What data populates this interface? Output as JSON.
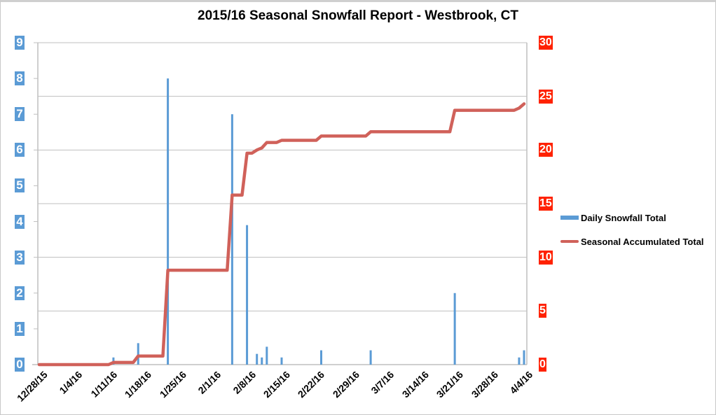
{
  "chart_title": "2015/16 Seasonal Snowfall Report - Westbrook, CT",
  "colors": {
    "daily_bar": "#5b9bd5",
    "accumulated_line": "#d0615a",
    "left_axis_label_bg": "#5b9bd5",
    "right_axis_label_bg": "#ff2200",
    "gridline": "#bfbfbf"
  },
  "axes": {
    "left_ticks": [
      "0",
      "1",
      "2",
      "3",
      "4",
      "5",
      "6",
      "7",
      "8",
      "9"
    ],
    "right_ticks": [
      "0",
      "5",
      "10",
      "15",
      "20",
      "25",
      "30"
    ],
    "x_ticks": [
      "12/28/15",
      "1/4/16",
      "1/11/16",
      "1/18/16",
      "1/25/16",
      "2/1/16",
      "2/8/16",
      "2/15/16",
      "2/22/16",
      "2/29/16",
      "3/7/16",
      "3/14/16",
      "3/21/16",
      "3/28/16",
      "4/4/16"
    ]
  },
  "legend": {
    "items": [
      {
        "label": "Daily Snowfall Total",
        "type": "bar"
      },
      {
        "label": "Seasonal Accumulated Total",
        "type": "line"
      }
    ]
  },
  "chart_data": {
    "type": "bar+line",
    "title": "2015/16 Seasonal Snowfall Report - Westbrook, CT",
    "xlabel": "",
    "ylabel_left": "",
    "ylabel_right": "",
    "x_range": [
      "12/28/15",
      "4/4/16"
    ],
    "ylim_left": [
      0,
      9
    ],
    "ylim_right": [
      0,
      30
    ],
    "grid": true,
    "legend_position": "right",
    "series": [
      {
        "name": "Daily Snowfall Total",
        "type": "bar",
        "axis": "left",
        "points": [
          {
            "date": "1/12/16",
            "value": 0.2
          },
          {
            "date": "1/17/16",
            "value": 0.6
          },
          {
            "date": "1/23/16",
            "value": 8.0
          },
          {
            "date": "2/5/16",
            "value": 7.0
          },
          {
            "date": "2/8/16",
            "value": 3.9
          },
          {
            "date": "2/10/16",
            "value": 0.3
          },
          {
            "date": "2/11/16",
            "value": 0.2
          },
          {
            "date": "2/12/16",
            "value": 0.5
          },
          {
            "date": "2/15/16",
            "value": 0.2
          },
          {
            "date": "2/23/16",
            "value": 0.4
          },
          {
            "date": "3/4/16",
            "value": 0.4
          },
          {
            "date": "3/21/16",
            "value": 2.0
          },
          {
            "date": "4/3/16",
            "value": 0.2
          },
          {
            "date": "4/4/16",
            "value": 0.4
          }
        ]
      },
      {
        "name": "Seasonal Accumulated Total",
        "type": "line",
        "axis": "right",
        "points": [
          {
            "date": "12/28/15",
            "value": 0
          },
          {
            "date": "1/11/16",
            "value": 0
          },
          {
            "date": "1/12/16",
            "value": 0.2
          },
          {
            "date": "1/16/16",
            "value": 0.2
          },
          {
            "date": "1/17/16",
            "value": 0.8
          },
          {
            "date": "1/22/16",
            "value": 0.8
          },
          {
            "date": "1/23/16",
            "value": 8.8
          },
          {
            "date": "2/4/16",
            "value": 8.8
          },
          {
            "date": "2/5/16",
            "value": 15.8
          },
          {
            "date": "2/7/16",
            "value": 15.8
          },
          {
            "date": "2/8/16",
            "value": 19.7
          },
          {
            "date": "2/9/16",
            "value": 19.7
          },
          {
            "date": "2/10/16",
            "value": 20.0
          },
          {
            "date": "2/11/16",
            "value": 20.2
          },
          {
            "date": "2/12/16",
            "value": 20.7
          },
          {
            "date": "2/14/16",
            "value": 20.7
          },
          {
            "date": "2/15/16",
            "value": 20.9
          },
          {
            "date": "2/22/16",
            "value": 20.9
          },
          {
            "date": "2/23/16",
            "value": 21.3
          },
          {
            "date": "3/3/16",
            "value": 21.3
          },
          {
            "date": "3/4/16",
            "value": 21.7
          },
          {
            "date": "3/20/16",
            "value": 21.7
          },
          {
            "date": "3/21/16",
            "value": 23.7
          },
          {
            "date": "4/2/16",
            "value": 23.7
          },
          {
            "date": "4/3/16",
            "value": 23.9
          },
          {
            "date": "4/4/16",
            "value": 24.3
          }
        ]
      }
    ]
  }
}
